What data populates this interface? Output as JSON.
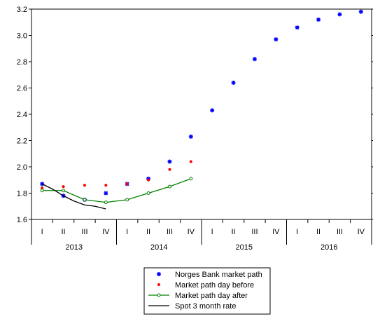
{
  "chart_data": {
    "type": "line",
    "title": "",
    "xlabel": "",
    "ylabel": "",
    "ylim": [
      1.6,
      3.2
    ],
    "yticks": [
      "1.6",
      "1.8",
      "2.0",
      "2.2",
      "2.4",
      "2.6",
      "2.8",
      "3.0",
      "3.2"
    ],
    "x_quarter_labels": [
      "I",
      "II",
      "III",
      "IV",
      "I",
      "II",
      "III",
      "IV",
      "I",
      "II",
      "III",
      "IV",
      "I",
      "II",
      "III",
      "IV"
    ],
    "x_year_labels": [
      "2013",
      "2014",
      "2015",
      "2016"
    ],
    "legend_position": "bottom-center",
    "series": [
      {
        "name": "Norges Bank market path",
        "style": "star-markers",
        "color": "#0000ff",
        "points": [
          [
            0,
            1.87
          ],
          [
            1,
            1.78
          ],
          [
            2,
            1.75
          ],
          [
            3,
            1.8
          ],
          [
            4,
            1.87
          ],
          [
            5,
            1.91
          ],
          [
            6,
            2.04
          ],
          [
            7,
            2.23
          ],
          [
            8,
            2.43
          ],
          [
            9,
            2.64
          ],
          [
            10,
            2.82
          ],
          [
            11,
            2.97
          ],
          [
            12,
            3.06
          ],
          [
            13,
            3.12
          ],
          [
            14,
            3.16
          ],
          [
            15,
            3.18
          ]
        ]
      },
      {
        "name": "Market path day before",
        "style": "dot-markers",
        "color": "#ff0000",
        "points": [
          [
            0,
            1.84
          ],
          [
            1,
            1.85
          ],
          [
            2,
            1.86
          ],
          [
            3,
            1.86
          ],
          [
            4,
            1.87
          ],
          [
            5,
            1.9
          ],
          [
            6,
            1.98
          ],
          [
            7,
            2.04
          ]
        ]
      },
      {
        "name": "Market path day after",
        "style": "line-with-circles",
        "color": "#008000",
        "points": [
          [
            0,
            1.82
          ],
          [
            1,
            1.82
          ],
          [
            2,
            1.75
          ],
          [
            3,
            1.73
          ],
          [
            4,
            1.75
          ],
          [
            5,
            1.8
          ],
          [
            6,
            1.85
          ],
          [
            7,
            1.91
          ]
        ]
      },
      {
        "name": "Spot 3 month rate",
        "style": "line",
        "color": "#000000",
        "points": [
          [
            0,
            1.87
          ],
          [
            0.5,
            1.83
          ],
          [
            1,
            1.78
          ],
          [
            1.5,
            1.74
          ],
          [
            2,
            1.71
          ],
          [
            2.5,
            1.7
          ],
          [
            3,
            1.68
          ]
        ]
      }
    ]
  }
}
